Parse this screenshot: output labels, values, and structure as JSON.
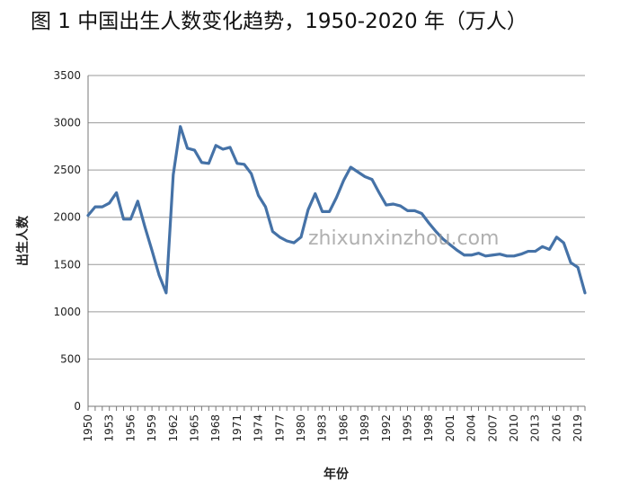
{
  "chart_data": {
    "type": "line",
    "title": "图 1  中国出生人数变化趋势，1950-2020 年（万人）",
    "xlabel": "年份",
    "ylabel": "出生人数",
    "ylim": [
      0,
      3500
    ],
    "yticks": [
      0,
      500,
      1000,
      1500,
      2000,
      2500,
      3000,
      3500
    ],
    "xlim": [
      1950,
      2020
    ],
    "xticks": [
      1950,
      1953,
      1956,
      1959,
      1962,
      1965,
      1968,
      1971,
      1974,
      1977,
      1980,
      1983,
      1986,
      1989,
      1992,
      1995,
      1998,
      2001,
      2004,
      2007,
      2010,
      2013,
      2016,
      2019
    ],
    "grid": "horizontal",
    "legend": "none",
    "color": "#4572A7",
    "series": [
      {
        "x": [
          1950,
          1951,
          1952,
          1953,
          1954,
          1955,
          1956,
          1957,
          1958,
          1959,
          1960,
          1961,
          1962,
          1963,
          1964,
          1965,
          1966,
          1967,
          1968,
          1969,
          1970,
          1971,
          1972,
          1973,
          1974,
          1975,
          1976,
          1977,
          1978,
          1979,
          1980,
          1981,
          1982,
          1983,
          1984,
          1985,
          1986,
          1987,
          1988,
          1989,
          1990,
          1991,
          1992,
          1993,
          1994,
          1995,
          1996,
          1997,
          1998,
          1999,
          2000,
          2001,
          2002,
          2003,
          2004,
          2005,
          2006,
          2007,
          2008,
          2009,
          2010,
          2011,
          2012,
          2013,
          2014,
          2015,
          2016,
          2017,
          2018,
          2019,
          2020
        ],
        "y": [
          2020,
          2110,
          2110,
          2150,
          2260,
          1980,
          1980,
          2170,
          1900,
          1650,
          1390,
          1200,
          2450,
          2960,
          2730,
          2710,
          2580,
          2570,
          2760,
          2720,
          2740,
          2570,
          2560,
          2460,
          2230,
          2110,
          1850,
          1790,
          1750,
          1730,
          1790,
          2080,
          2250,
          2060,
          2060,
          2210,
          2390,
          2530,
          2480,
          2430,
          2400,
          2260,
          2130,
          2140,
          2120,
          2070,
          2070,
          2040,
          1940,
          1850,
          1770,
          1710,
          1650,
          1600,
          1600,
          1620,
          1590,
          1600,
          1610,
          1590,
          1590,
          1610,
          1640,
          1640,
          1690,
          1660,
          1790,
          1730,
          1520,
          1470,
          1200
        ]
      }
    ]
  },
  "watermark": "zhixunxinzhou.com"
}
